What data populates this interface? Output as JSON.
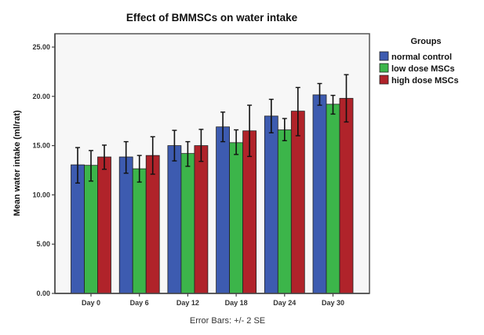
{
  "chart_data": {
    "type": "bar",
    "title": "Effect of BMMSCs on water intake",
    "xlabel": "",
    "ylabel": "Mean water intake (ml/rat)",
    "ylim": [
      0,
      25
    ],
    "yticks": [
      "0.00",
      "5.00",
      "10.00",
      "15.00",
      "20.00",
      "25.00"
    ],
    "ytick_values": [
      0,
      5,
      10,
      15,
      20,
      25
    ],
    "grid": false,
    "categories": [
      "Day 0",
      "Day 6",
      "Day 12",
      "Day 18",
      "Day 24",
      "Day 30"
    ],
    "legend": {
      "title": "Groups",
      "placement": "right"
    },
    "footnote": "Error Bars: +/- 2 SE",
    "series": [
      {
        "name": "normal control",
        "color": "#3D5BB0",
        "values": [
          13.05,
          13.85,
          15.0,
          16.9,
          18.0,
          20.15
        ],
        "err_low": [
          11.2,
          12.2,
          13.45,
          15.4,
          16.3,
          19.1
        ],
        "err_high": [
          14.8,
          15.4,
          16.55,
          18.4,
          19.7,
          21.3
        ]
      },
      {
        "name": "low dose MSCs",
        "color": "#3CB54A",
        "values": [
          13.0,
          12.65,
          14.2,
          15.3,
          16.6,
          19.2
        ],
        "err_low": [
          11.4,
          11.3,
          12.9,
          14.1,
          15.5,
          18.2
        ],
        "err_high": [
          14.5,
          14.0,
          15.4,
          16.6,
          17.75,
          20.1
        ]
      },
      {
        "name": "high dose MSCs",
        "color": "#B0232A",
        "values": [
          13.85,
          14.0,
          15.0,
          16.5,
          18.5,
          19.8
        ],
        "err_low": [
          12.6,
          12.1,
          13.4,
          13.9,
          16.0,
          17.4
        ],
        "err_high": [
          15.05,
          15.9,
          16.65,
          19.1,
          20.9,
          22.2
        ]
      }
    ]
  }
}
